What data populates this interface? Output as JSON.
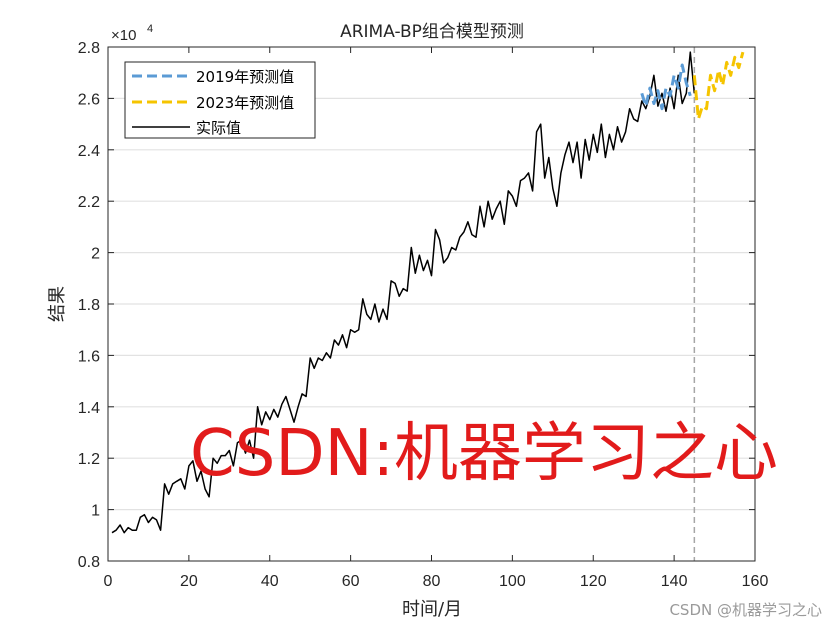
{
  "chart_data": {
    "type": "line",
    "title": "ARIMA-BP组合模型预测",
    "xlabel": "时间/月",
    "ylabel": "结果",
    "y_multiplier_label": "×10",
    "y_multiplier_exponent": "4",
    "xlim": [
      0,
      160
    ],
    "ylim": [
      0.8,
      2.8
    ],
    "xticks": [
      "0",
      "20",
      "40",
      "60",
      "80",
      "100",
      "120",
      "140",
      "160"
    ],
    "yticks": [
      "0.8",
      "1",
      "1.2",
      "1.4",
      "1.6",
      "1.8",
      "2",
      "2.2",
      "2.4",
      "2.6",
      "2.8"
    ],
    "grid": "horizontal",
    "legend_position": "top-left",
    "divider_x": 145,
    "series": [
      {
        "name": "2019年预测值",
        "style": "dashed",
        "color": "#5b9bd5",
        "x": [
          132,
          133,
          134,
          135,
          136,
          137,
          138,
          139,
          140,
          141,
          142,
          143,
          144
        ],
        "y": [
          2.62,
          2.57,
          2.64,
          2.58,
          2.63,
          2.56,
          2.64,
          2.61,
          2.69,
          2.64,
          2.73,
          2.66,
          2.61
        ]
      },
      {
        "name": "2023年预测值",
        "style": "dashed",
        "color": "#f5c400",
        "x": [
          145,
          146,
          147,
          148,
          149,
          150,
          151,
          152,
          153,
          154,
          155,
          156,
          157
        ],
        "y": [
          2.69,
          2.52,
          2.57,
          2.56,
          2.69,
          2.63,
          2.71,
          2.65,
          2.74,
          2.69,
          2.76,
          2.72,
          2.78
        ]
      },
      {
        "name": "实际值",
        "style": "solid",
        "color": "#000000",
        "x": [
          1,
          2,
          3,
          4,
          5,
          6,
          7,
          8,
          9,
          10,
          11,
          12,
          13,
          14,
          15,
          16,
          17,
          18,
          19,
          20,
          21,
          22,
          23,
          24,
          25,
          26,
          27,
          28,
          29,
          30,
          31,
          32,
          33,
          34,
          35,
          36,
          37,
          38,
          39,
          40,
          41,
          42,
          43,
          44,
          45,
          46,
          47,
          48,
          49,
          50,
          51,
          52,
          53,
          54,
          55,
          56,
          57,
          58,
          59,
          60,
          61,
          62,
          63,
          64,
          65,
          66,
          67,
          68,
          69,
          70,
          71,
          72,
          73,
          74,
          75,
          76,
          77,
          78,
          79,
          80,
          81,
          82,
          83,
          84,
          85,
          86,
          87,
          88,
          89,
          90,
          91,
          92,
          93,
          94,
          95,
          96,
          97,
          98,
          99,
          100,
          101,
          102,
          103,
          104,
          105,
          106,
          107,
          108,
          109,
          110,
          111,
          112,
          113,
          114,
          115,
          116,
          117,
          118,
          119,
          120,
          121,
          122,
          123,
          124,
          125,
          126,
          127,
          128,
          129,
          130,
          131,
          132,
          133,
          134,
          135,
          136,
          137,
          138,
          139,
          140,
          141,
          142,
          143,
          144,
          145
        ],
        "y": [
          0.91,
          0.92,
          0.94,
          0.91,
          0.93,
          0.92,
          0.92,
          0.97,
          0.98,
          0.95,
          0.97,
          0.96,
          0.92,
          1.1,
          1.06,
          1.1,
          1.11,
          1.12,
          1.08,
          1.17,
          1.19,
          1.11,
          1.15,
          1.08,
          1.05,
          1.2,
          1.18,
          1.21,
          1.21,
          1.23,
          1.17,
          1.26,
          1.27,
          1.22,
          1.27,
          1.2,
          1.4,
          1.33,
          1.38,
          1.35,
          1.39,
          1.36,
          1.41,
          1.44,
          1.39,
          1.34,
          1.4,
          1.45,
          1.44,
          1.59,
          1.55,
          1.59,
          1.58,
          1.61,
          1.59,
          1.66,
          1.64,
          1.68,
          1.63,
          1.7,
          1.69,
          1.7,
          1.82,
          1.76,
          1.74,
          1.8,
          1.73,
          1.78,
          1.74,
          1.89,
          1.88,
          1.83,
          1.86,
          1.85,
          2.02,
          1.92,
          1.99,
          1.93,
          1.97,
          1.91,
          2.09,
          2.05,
          1.96,
          1.98,
          2.02,
          2.01,
          2.06,
          2.08,
          2.12,
          2.07,
          2.06,
          2.18,
          2.1,
          2.2,
          2.13,
          2.17,
          2.2,
          2.11,
          2.24,
          2.22,
          2.18,
          2.28,
          2.29,
          2.31,
          2.24,
          2.47,
          2.5,
          2.29,
          2.37,
          2.25,
          2.18,
          2.31,
          2.38,
          2.43,
          2.35,
          2.43,
          2.29,
          2.44,
          2.36,
          2.46,
          2.39,
          2.5,
          2.37,
          2.46,
          2.4,
          2.49,
          2.43,
          2.47,
          2.56,
          2.52,
          2.51,
          2.59,
          2.56,
          2.61,
          2.69,
          2.57,
          2.62,
          2.55,
          2.64,
          2.56,
          2.69,
          2.58,
          2.62,
          2.78,
          2.62
        ]
      }
    ]
  },
  "watermark": "CSDN:机器学习之心",
  "footer_watermark": "CSDN @机器学习之心"
}
